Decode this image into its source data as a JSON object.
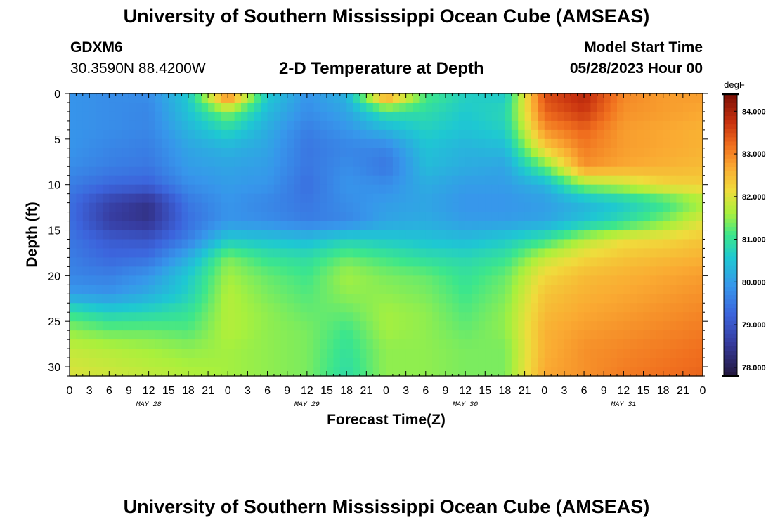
{
  "header": {
    "title": "University of Southern Mississippi Ocean Cube (AMSEAS)",
    "station_id": "GDXM6",
    "coords": "30.3590N  88.4200W",
    "chart_title": "2-D Temperature at Depth",
    "start_label": "Model Start Time",
    "start_value": "05/28/2023 Hour 00"
  },
  "footer": {
    "title": "University of Southern Mississippi Ocean Cube (AMSEAS)"
  },
  "chart_data": {
    "type": "heatmap",
    "title": "2-D Temperature at Depth",
    "xlabel": "Forecast Time(Z)",
    "ylabel": "Depth (ft)",
    "x_tick_labels": [
      "0",
      "3",
      "6",
      "9",
      "12",
      "15",
      "18",
      "21",
      "0",
      "3",
      "6",
      "9",
      "12",
      "15",
      "18",
      "21",
      "0",
      "3",
      "6",
      "9",
      "12",
      "15",
      "18",
      "21",
      "0",
      "3",
      "6",
      "9",
      "12",
      "15",
      "18",
      "21",
      "0"
    ],
    "x_hours": [
      0,
      96
    ],
    "date_labels": [
      {
        "label": "MAY 28",
        "hour": 12
      },
      {
        "label": "MAY 29",
        "hour": 36
      },
      {
        "label": "MAY 30",
        "hour": 60
      },
      {
        "label": "MAY 31",
        "hour": 84
      }
    ],
    "y_ticks": [
      0,
      5,
      10,
      15,
      20,
      25,
      30
    ],
    "ylim": [
      0,
      31
    ],
    "y_inverted": true,
    "colorbar": {
      "unit": "degF",
      "min": 77.8,
      "max": 84.4,
      "tick_labels": [
        "84.000",
        "83.000",
        "82.000",
        "81.000",
        "80.000",
        "79.000",
        "78.000"
      ],
      "tick_values": [
        84,
        83,
        82,
        81,
        80,
        79,
        78
      ]
    },
    "depths": [
      0,
      2,
      4,
      6,
      8,
      10,
      12,
      14,
      16,
      18,
      20,
      22,
      24,
      26,
      28,
      31
    ],
    "hours": [
      0,
      6,
      12,
      18,
      24,
      30,
      36,
      42,
      48,
      54,
      60,
      66,
      72,
      78,
      84,
      90,
      96
    ],
    "values": [
      [
        79.9,
        79.8,
        79.8,
        80.6,
        83.3,
        80.6,
        79.9,
        80.3,
        83.1,
        81.2,
        80.7,
        80.6,
        83.5,
        83.9,
        83.0,
        82.8,
        82.8
      ],
      [
        79.9,
        79.8,
        79.7,
        80.5,
        81.5,
        80.4,
        79.8,
        80.1,
        81.0,
        80.9,
        80.6,
        80.8,
        83.3,
        83.7,
        82.9,
        82.8,
        82.7
      ],
      [
        79.9,
        79.8,
        79.7,
        80.3,
        80.8,
        80.2,
        79.6,
        79.9,
        80.3,
        80.7,
        80.5,
        80.7,
        82.9,
        83.3,
        82.8,
        82.7,
        82.6
      ],
      [
        79.9,
        79.7,
        79.6,
        80.1,
        80.3,
        80.1,
        79.5,
        79.7,
        79.7,
        80.5,
        80.3,
        80.4,
        82.3,
        83.1,
        82.8,
        82.7,
        82.6
      ],
      [
        79.8,
        79.6,
        79.5,
        80.0,
        80.1,
        80.0,
        79.5,
        79.8,
        79.5,
        80.4,
        80.2,
        80.1,
        81.3,
        82.9,
        82.7,
        82.6,
        82.5
      ],
      [
        79.6,
        79.3,
        79.2,
        79.8,
        80.0,
        79.9,
        79.4,
        79.9,
        79.8,
        80.2,
        80.0,
        80.0,
        80.3,
        81.5,
        81.8,
        82.2,
        82.3
      ],
      [
        79.4,
        78.7,
        78.4,
        79.5,
        79.9,
        79.7,
        79.5,
        79.8,
        80.0,
        80.1,
        79.9,
        79.9,
        80.0,
        80.3,
        80.6,
        81.0,
        81.6
      ],
      [
        79.4,
        78.6,
        78.4,
        79.4,
        79.9,
        79.8,
        79.6,
        79.7,
        80.1,
        80.2,
        80.0,
        80.0,
        80.1,
        80.5,
        80.9,
        81.4,
        82.0
      ],
      [
        79.5,
        79.1,
        79.0,
        79.6,
        80.6,
        80.5,
        80.4,
        80.7,
        80.6,
        80.5,
        80.4,
        80.6,
        81.0,
        81.7,
        82.1,
        82.2,
        82.4
      ],
      [
        79.6,
        79.3,
        79.4,
        80.2,
        81.4,
        81.0,
        80.9,
        81.3,
        81.1,
        80.9,
        80.8,
        81.0,
        81.8,
        82.2,
        82.4,
        82.5,
        82.6
      ],
      [
        79.7,
        79.6,
        79.9,
        80.6,
        81.6,
        81.3,
        81.1,
        81.6,
        81.4,
        81.3,
        81.0,
        81.3,
        82.2,
        82.5,
        82.6,
        82.7,
        82.8
      ],
      [
        80.0,
        79.9,
        80.2,
        80.7,
        81.7,
        81.4,
        81.2,
        81.5,
        81.5,
        81.4,
        81.1,
        81.4,
        82.4,
        82.6,
        82.7,
        82.8,
        82.9
      ],
      [
        81.0,
        80.7,
        80.8,
        81.0,
        81.7,
        81.5,
        81.3,
        81.3,
        81.6,
        81.5,
        81.2,
        81.5,
        82.5,
        82.7,
        82.8,
        82.9,
        83.0
      ],
      [
        81.5,
        81.3,
        81.3,
        81.2,
        81.7,
        81.5,
        81.4,
        81.1,
        81.6,
        81.5,
        81.3,
        81.5,
        82.6,
        82.8,
        82.9,
        83.0,
        83.1
      ],
      [
        81.8,
        81.7,
        81.6,
        81.5,
        81.6,
        81.5,
        81.4,
        81.0,
        81.5,
        81.5,
        81.4,
        81.4,
        82.6,
        82.9,
        83.0,
        83.1,
        83.2
      ],
      [
        82.0,
        81.9,
        81.8,
        81.7,
        81.6,
        81.5,
        81.4,
        80.9,
        81.5,
        81.5,
        81.4,
        81.4,
        82.7,
        82.9,
        83.1,
        83.2,
        83.3
      ]
    ]
  }
}
